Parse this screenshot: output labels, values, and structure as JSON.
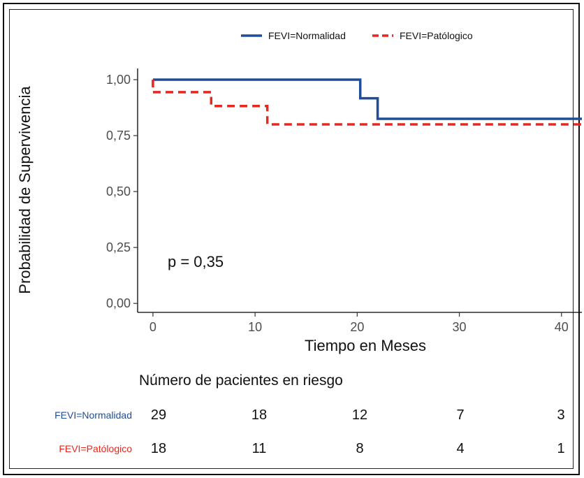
{
  "chart_data": {
    "type": "line",
    "subtype": "kaplan-meier step",
    "xlabel": "Tiempo en Meses",
    "ylabel": "Probabilidad de Supervivencia",
    "xlim": [
      -1.5,
      42
    ],
    "ylim": [
      -0.04,
      1.05
    ],
    "x_ticks": [
      0,
      10,
      20,
      30,
      40
    ],
    "x_tick_labels": [
      "0",
      "10",
      "20",
      "30",
      "40"
    ],
    "y_ticks": [
      0,
      0.25,
      0.5,
      0.75,
      1.0
    ],
    "y_tick_labels": [
      "0,00",
      "0,25",
      "0,50",
      "0,75",
      "1,00"
    ],
    "grid": false,
    "legend_position": "top",
    "annotation": "p = 0,35",
    "series": [
      {
        "name": "FEVI=Normalidad",
        "color": "#1f4e96",
        "style": "solid",
        "x": [
          0,
          20.3,
          20.3,
          22,
          22,
          42
        ],
        "y": [
          1.0,
          1.0,
          0.917,
          0.917,
          0.825,
          0.825
        ]
      },
      {
        "name": "FEVI=Patólogico",
        "color": "#e8281e",
        "style": "dashed",
        "x": [
          0,
          0,
          5.7,
          5.7,
          11.2,
          11.2,
          42
        ],
        "y": [
          1.0,
          0.944,
          0.944,
          0.882,
          0.882,
          0.8,
          0.8
        ]
      }
    ],
    "risk_table": {
      "title": "Número de pacientes en riesgo",
      "times": [
        0,
        10,
        20,
        30,
        40
      ],
      "rows": [
        {
          "label": "FEVI=Normalidad",
          "color": "#1f4e96",
          "values": [
            "29",
            "18",
            "12",
            "7",
            "3"
          ]
        },
        {
          "label": "FEVI=Patólogico",
          "color": "#e8281e",
          "values": [
            "18",
            "11",
            "8",
            "4",
            "1"
          ]
        }
      ]
    }
  }
}
